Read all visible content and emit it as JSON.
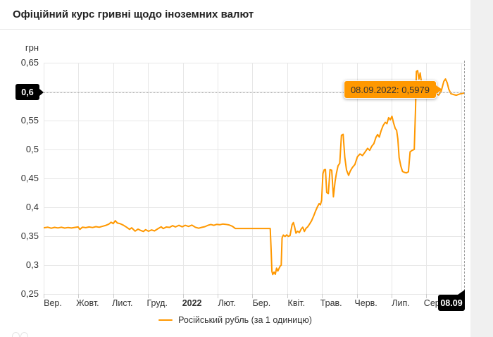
{
  "page": {
    "background_color": "#f0f0f0",
    "card_color": "#ffffff"
  },
  "header": {
    "title": "Офіційний курс гривні щодо іноземних валют"
  },
  "axis": {
    "y_unit_label": "грн"
  },
  "tooltip": {
    "text": "08.09.2022: 0,5979"
  },
  "crosshair": {
    "y_axis_label": "0,6",
    "x_axis_label": "08.09"
  },
  "legend": {
    "label": "Російський рубль (за 1 одиницю)",
    "color": "#ff9800"
  },
  "chart_data": {
    "type": "line",
    "title": "Офіційний курс гривні щодо іноземних валют",
    "ylabel": "грн",
    "grid": true,
    "line_color": "#ff9800",
    "y_axis": {
      "min": 0.25,
      "max": 0.65,
      "tick_labels": [
        "0,65",
        "0,6",
        "0,55",
        "0,5",
        "0,45",
        "0,4",
        "0,35",
        "0,3",
        "0,25"
      ]
    },
    "x_axis": {
      "start": "Вересень 2021",
      "end": "08.09.2022",
      "tick_labels": [
        {
          "label": "Вер.",
          "bold": false
        },
        {
          "label": "Жовт.",
          "bold": false
        },
        {
          "label": "Лист.",
          "bold": false
        },
        {
          "label": "Груд.",
          "bold": false
        },
        {
          "label": "2022",
          "bold": true
        },
        {
          "label": "Лют.",
          "bold": false
        },
        {
          "label": "Бер.",
          "bold": false
        },
        {
          "label": "Квіт.",
          "bold": false
        },
        {
          "label": "Трав.",
          "bold": false
        },
        {
          "label": "Черв.",
          "bold": false
        },
        {
          "label": "Лип.",
          "bold": false
        },
        {
          "label": "Серп.",
          "bold": false
        }
      ]
    },
    "last_point": {
      "date": "08.09.2022",
      "value": 0.5979
    },
    "point_x_unit": "fraction of x-axis span (Sep 2021 → 08.09.2022)",
    "series": [
      {
        "name": "Російський рубль (за 1 одиницю)",
        "color": "#ff9800",
        "points": [
          [
            0.0,
            0.3645
          ],
          [
            0.01,
            0.3655
          ],
          [
            0.018,
            0.3638
          ],
          [
            0.026,
            0.3652
          ],
          [
            0.034,
            0.3643
          ],
          [
            0.042,
            0.3655
          ],
          [
            0.05,
            0.364
          ],
          [
            0.058,
            0.365
          ],
          [
            0.066,
            0.3642
          ],
          [
            0.075,
            0.3652
          ],
          [
            0.082,
            0.366
          ],
          [
            0.086,
            0.3618
          ],
          [
            0.092,
            0.3655
          ],
          [
            0.1,
            0.3648
          ],
          [
            0.108,
            0.366
          ],
          [
            0.116,
            0.365
          ],
          [
            0.124,
            0.3665
          ],
          [
            0.132,
            0.3655
          ],
          [
            0.14,
            0.3672
          ],
          [
            0.148,
            0.3688
          ],
          [
            0.155,
            0.371
          ],
          [
            0.16,
            0.3742
          ],
          [
            0.165,
            0.3718
          ],
          [
            0.17,
            0.3768
          ],
          [
            0.175,
            0.3728
          ],
          [
            0.181,
            0.3718
          ],
          [
            0.189,
            0.3692
          ],
          [
            0.197,
            0.3655
          ],
          [
            0.204,
            0.3618
          ],
          [
            0.209,
            0.3645
          ],
          [
            0.217,
            0.3588
          ],
          [
            0.224,
            0.3622
          ],
          [
            0.231,
            0.3598
          ],
          [
            0.237,
            0.3582
          ],
          [
            0.242,
            0.3612
          ],
          [
            0.249,
            0.3585
          ],
          [
            0.256,
            0.3608
          ],
          [
            0.263,
            0.3592
          ],
          [
            0.271,
            0.3628
          ],
          [
            0.279,
            0.3662
          ],
          [
            0.284,
            0.3632
          ],
          [
            0.291,
            0.3658
          ],
          [
            0.299,
            0.3652
          ],
          [
            0.306,
            0.3682
          ],
          [
            0.313,
            0.366
          ],
          [
            0.321,
            0.3688
          ],
          [
            0.329,
            0.3662
          ],
          [
            0.336,
            0.3688
          ],
          [
            0.344,
            0.3668
          ],
          [
            0.352,
            0.3692
          ],
          [
            0.36,
            0.3655
          ],
          [
            0.368,
            0.3638
          ],
          [
            0.375,
            0.3652
          ],
          [
            0.383,
            0.3665
          ],
          [
            0.39,
            0.3688
          ],
          [
            0.397,
            0.3702
          ],
          [
            0.404,
            0.3688
          ],
          [
            0.411,
            0.3705
          ],
          [
            0.418,
            0.3698
          ],
          [
            0.425,
            0.371
          ],
          [
            0.432,
            0.3705
          ],
          [
            0.44,
            0.3695
          ],
          [
            0.448,
            0.3672
          ],
          [
            0.455,
            0.3633
          ],
          [
            0.538,
            0.3633
          ],
          [
            0.54,
            0.328
          ],
          [
            0.542,
            0.289
          ],
          [
            0.544,
            0.2838
          ],
          [
            0.547,
            0.2878
          ],
          [
            0.55,
            0.2842
          ],
          [
            0.553,
            0.2948
          ],
          [
            0.556,
            0.2898
          ],
          [
            0.559,
            0.2945
          ],
          [
            0.562,
            0.2988
          ],
          [
            0.564,
            0.2998
          ],
          [
            0.566,
            0.347
          ],
          [
            0.569,
            0.352
          ],
          [
            0.573,
            0.3495
          ],
          [
            0.577,
            0.3522
          ],
          [
            0.581,
            0.3498
          ],
          [
            0.585,
            0.351
          ],
          [
            0.59,
            0.37
          ],
          [
            0.593,
            0.3735
          ],
          [
            0.596,
            0.3655
          ],
          [
            0.599,
            0.3552
          ],
          [
            0.603,
            0.3585
          ],
          [
            0.607,
            0.3562
          ],
          [
            0.611,
            0.3618
          ],
          [
            0.615,
            0.3655
          ],
          [
            0.619,
            0.3582
          ],
          [
            0.623,
            0.3638
          ],
          [
            0.627,
            0.3662
          ],
          [
            0.631,
            0.3705
          ],
          [
            0.636,
            0.3765
          ],
          [
            0.641,
            0.3848
          ],
          [
            0.646,
            0.3942
          ],
          [
            0.65,
            0.4008
          ],
          [
            0.654,
            0.4062
          ],
          [
            0.657,
            0.4042
          ],
          [
            0.66,
            0.4122
          ],
          [
            0.663,
            0.4582
          ],
          [
            0.666,
            0.4648
          ],
          [
            0.669,
            0.4652
          ],
          [
            0.672,
            0.4255
          ],
          [
            0.676,
            0.4238
          ],
          [
            0.68,
            0.465
          ],
          [
            0.684,
            0.4642
          ],
          [
            0.688,
            0.418
          ],
          [
            0.692,
            0.4448
          ],
          [
            0.695,
            0.4582
          ],
          [
            0.699,
            0.4718
          ],
          [
            0.703,
            0.476
          ],
          [
            0.707,
            0.5245
          ],
          [
            0.711,
            0.5262
          ],
          [
            0.715,
            0.4862
          ],
          [
            0.719,
            0.4645
          ],
          [
            0.724,
            0.4552
          ],
          [
            0.728,
            0.4625
          ],
          [
            0.733,
            0.4688
          ],
          [
            0.739,
            0.474
          ],
          [
            0.745,
            0.4875
          ],
          [
            0.751,
            0.4922
          ],
          [
            0.757,
            0.4895
          ],
          [
            0.763,
            0.4955
          ],
          [
            0.769,
            0.502
          ],
          [
            0.774,
            0.4985
          ],
          [
            0.779,
            0.5055
          ],
          [
            0.784,
            0.51
          ],
          [
            0.789,
            0.521
          ],
          [
            0.793,
            0.5258
          ],
          [
            0.797,
            0.5215
          ],
          [
            0.801,
            0.532
          ],
          [
            0.806,
            0.5415
          ],
          [
            0.811,
            0.547
          ],
          [
            0.815,
            0.5445
          ],
          [
            0.819,
            0.555
          ],
          [
            0.823,
            0.5515
          ],
          [
            0.827,
            0.5575
          ],
          [
            0.831,
            0.5455
          ],
          [
            0.835,
            0.536
          ],
          [
            0.838,
            0.5335
          ],
          [
            0.841,
            0.518
          ],
          [
            0.844,
            0.486
          ],
          [
            0.848,
            0.4715
          ],
          [
            0.852,
            0.462
          ],
          [
            0.856,
            0.4605
          ],
          [
            0.861,
            0.4595
          ],
          [
            0.866,
            0.4615
          ],
          [
            0.87,
            0.496
          ],
          [
            0.875,
            0.4985
          ],
          [
            0.88,
            0.5
          ],
          [
            0.883,
            0.57
          ],
          [
            0.885,
            0.635
          ],
          [
            0.888,
            0.6365
          ],
          [
            0.891,
            0.622
          ],
          [
            0.894,
            0.6325
          ],
          [
            0.897,
            0.616
          ],
          [
            0.9,
            0.602
          ],
          [
            0.904,
            0.593
          ],
          [
            0.909,
            0.595
          ],
          [
            0.914,
            0.5915
          ],
          [
            0.92,
            0.5945
          ],
          [
            0.926,
            0.5925
          ],
          [
            0.932,
            0.596
          ],
          [
            0.938,
            0.5942
          ],
          [
            0.944,
            0.601
          ],
          [
            0.95,
            0.6175
          ],
          [
            0.954,
            0.622
          ],
          [
            0.958,
            0.6155
          ],
          [
            0.962,
            0.604
          ],
          [
            0.967,
            0.5965
          ],
          [
            0.973,
            0.595
          ],
          [
            0.98,
            0.5938
          ],
          [
            0.988,
            0.596
          ],
          [
            1.0,
            0.5979
          ]
        ]
      }
    ]
  }
}
